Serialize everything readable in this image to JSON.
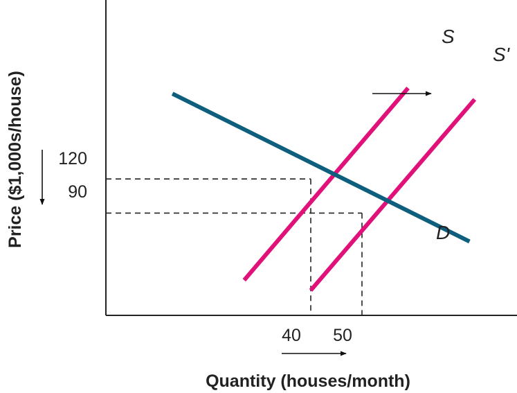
{
  "chart_data": {
    "type": "line",
    "xlabel": "Quantity (houses/month)",
    "ylabel": "Price ($1,000s/house)",
    "grid": false,
    "legend": "none",
    "x_ticks": [
      "40",
      "50"
    ],
    "y_ticks": [
      "120",
      "90"
    ],
    "series": [
      {
        "name": "S",
        "color": "#e0127a",
        "x": [
          27,
          59
        ],
        "y": [
          31,
          200
        ]
      },
      {
        "name": "S'",
        "color": "#e0127a",
        "x": [
          40,
          72
        ],
        "y": [
          22,
          190
        ]
      },
      {
        "name": "D",
        "color": "#0e5f7e",
        "x": [
          13,
          71
        ],
        "y": [
          195,
          65
        ]
      }
    ],
    "equilibria": [
      {
        "x": 40,
        "y": 120
      },
      {
        "x": 50,
        "y": 90
      }
    ],
    "shift_arrows": [
      {
        "data-label": "supply shift",
        "direction": "right"
      },
      {
        "data-label": "quantity increase",
        "direction": "right"
      },
      {
        "data-label": "price decrease",
        "direction": "down"
      }
    ]
  }
}
